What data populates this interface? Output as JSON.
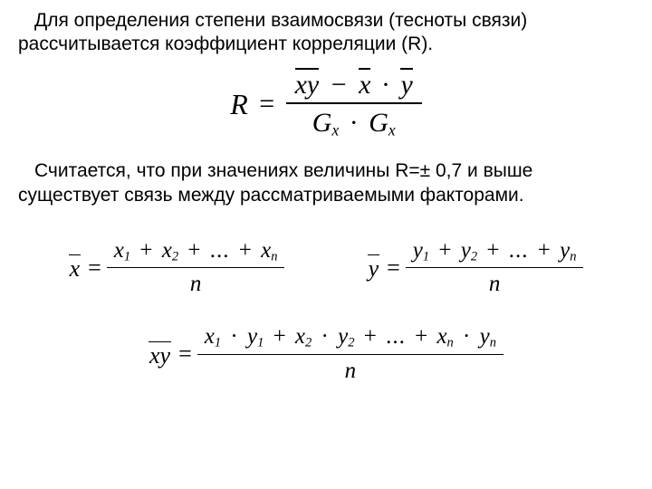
{
  "para1_a": "Для определения степени взаимосвязи (тесноты связи)",
  "para1_b": "рассчитывается коэффициент корреляции (R).",
  "R_formula": {
    "lhs": "R",
    "eq": "=",
    "num_xy": "xy",
    "minus": "−",
    "num_x": "x",
    "cdot": "·",
    "num_y": "y",
    "den_G1": "G",
    "den_sub1": "x",
    "den_G2": "G",
    "den_sub2": "x"
  },
  "para2_a": "Считается, что при значениях величины R=± 0,7 и выше",
  "para2_b": "существует связь между рассматриваемыми факторами.",
  "mean_x": {
    "lhs": "x",
    "eq": "=",
    "t1": "x",
    "s1": "1",
    "p": "+",
    "t2": "x",
    "s2": "2",
    "dots": "...",
    "tn": "x",
    "sn": "n",
    "den": "n"
  },
  "mean_y": {
    "lhs": "y",
    "eq": "=",
    "t1": "y",
    "s1": "1",
    "p": "+",
    "t2": "y",
    "s2": "2",
    "dots": "...",
    "tn": "y",
    "sn": "n",
    "den": "n"
  },
  "mean_xy": {
    "lhs": "xy",
    "eq": "=",
    "x": "x",
    "y": "y",
    "c": "·",
    "p": "+",
    "s1": "1",
    "s2": "2",
    "sn": "n",
    "dots": "...",
    "den": "n"
  }
}
